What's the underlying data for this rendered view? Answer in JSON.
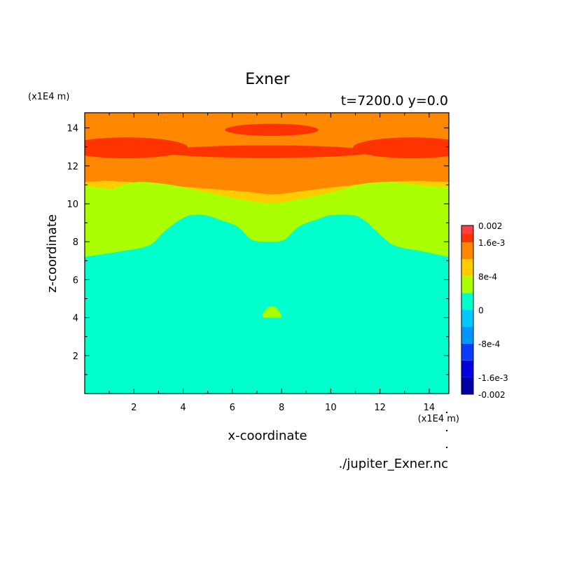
{
  "chart_data": {
    "type": "heatmap",
    "title": "Exner",
    "subtitle": "t=7200.0 y=0.0",
    "xlabel": "x-coordinate",
    "ylabel": "z-coordinate",
    "x_unit_label": "(x1E4 m)",
    "y_unit_label": "(x1E4 m)",
    "source_label": "./jupiter_Exner.nc",
    "xlim": [
      0,
      14.8
    ],
    "ylim": [
      0,
      14.8
    ],
    "x_ticks": [
      2,
      4,
      6,
      8,
      10,
      12,
      14
    ],
    "y_ticks": [
      2,
      4,
      6,
      8,
      10,
      12,
      14
    ],
    "x_tick_labels": [
      "2",
      "4",
      "6",
      "8",
      "10",
      "12",
      "14"
    ],
    "y_tick_labels": [
      "2",
      "4",
      "6",
      "8",
      "10",
      "12",
      "14"
    ],
    "grid": false,
    "colorbar": {
      "levels": [
        -0.002,
        -0.0016,
        -0.0012,
        -0.0008,
        -0.0004,
        0,
        0.0004,
        0.0008,
        0.0012,
        0.0016,
        0.002
      ],
      "colors": [
        "#0000A0",
        "#0000DC",
        "#0A3CFF",
        "#0096FF",
        "#00C8FF",
        "#00FFCC",
        "#AAFF00",
        "#FFCC00",
        "#FF8800",
        "#FF3300",
        "#FF4040"
      ],
      "tick_values": [
        0.002,
        0.0016,
        0.0008,
        0,
        -0.0008,
        -0.0016,
        -0.002
      ],
      "tick_labels": [
        "0.002",
        "1.6e-3",
        "8e-4",
        "0",
        "-8e-4",
        "-1.6e-3",
        "-0.002"
      ]
    },
    "regions": [
      {
        "name": "orange-band",
        "level": 8,
        "color": "#FF8800",
        "boundary": [
          [
            0,
            11.15
          ],
          [
            1.2,
            11.2
          ],
          [
            3,
            11.0
          ],
          [
            5,
            10.8
          ],
          [
            6.5,
            10.65
          ],
          [
            7.7,
            10.5
          ],
          [
            9,
            10.7
          ],
          [
            11,
            11.0
          ],
          [
            13,
            11.2
          ],
          [
            14.8,
            11.15
          ]
        ]
      },
      {
        "name": "yellow-band",
        "level": 7,
        "color": "#FFCC00",
        "boundary": [
          [
            0,
            10.95
          ],
          [
            1.1,
            10.8
          ],
          [
            1.3,
            10.9
          ],
          [
            2.2,
            11.15
          ],
          [
            3.5,
            11.0
          ],
          [
            5,
            10.6
          ],
          [
            6.5,
            10.2
          ],
          [
            7.6,
            10.05
          ],
          [
            8.5,
            10.2
          ],
          [
            10,
            10.6
          ],
          [
            11.3,
            11.05
          ],
          [
            12.5,
            11.15
          ],
          [
            13.5,
            11.0
          ],
          [
            14.4,
            10.9
          ],
          [
            14.8,
            10.9
          ]
        ]
      },
      {
        "name": "green-band",
        "level": 6,
        "color": "#AAFF00",
        "boundary": [
          [
            0,
            7.2
          ],
          [
            1.5,
            7.5
          ],
          [
            2.6,
            7.8
          ],
          [
            3.2,
            8.5
          ],
          [
            3.8,
            9.1
          ],
          [
            4.3,
            9.4
          ],
          [
            4.9,
            9.4
          ],
          [
            5.4,
            9.2
          ],
          [
            6.2,
            8.8
          ],
          [
            6.8,
            8.1
          ],
          [
            7.5,
            8.0
          ],
          [
            8.1,
            8.1
          ],
          [
            8.7,
            8.8
          ],
          [
            9.5,
            9.2
          ],
          [
            10.0,
            9.4
          ],
          [
            10.9,
            9.4
          ],
          [
            11.4,
            9.1
          ],
          [
            11.9,
            8.5
          ],
          [
            12.6,
            7.8
          ],
          [
            13.7,
            7.5
          ],
          [
            14.8,
            7.2
          ]
        ]
      }
    ],
    "blobs": [
      {
        "name": "top-red-lens",
        "color": "#FF3300",
        "cx": 7.6,
        "cy": 13.9,
        "rx": 1.9,
        "ry": 0.32
      },
      {
        "name": "center-red-lens",
        "color": "#FF3300",
        "cx": 7.4,
        "cy": 12.75,
        "rx": 4.3,
        "ry": 0.33
      },
      {
        "name": "left-red-lobe",
        "color": "#FF3300",
        "cx": 1.7,
        "cy": 12.95,
        "rx": 2.5,
        "ry": 0.55
      },
      {
        "name": "right-red-lobe",
        "color": "#FF3300",
        "cx": 13.3,
        "cy": 12.95,
        "rx": 2.4,
        "ry": 0.55
      }
    ],
    "bump": {
      "name": "green-bump",
      "color": "#AAFF00",
      "x": [
        7.2,
        8.0
      ],
      "ybase": 4.0,
      "ytop": 4.6
    }
  }
}
